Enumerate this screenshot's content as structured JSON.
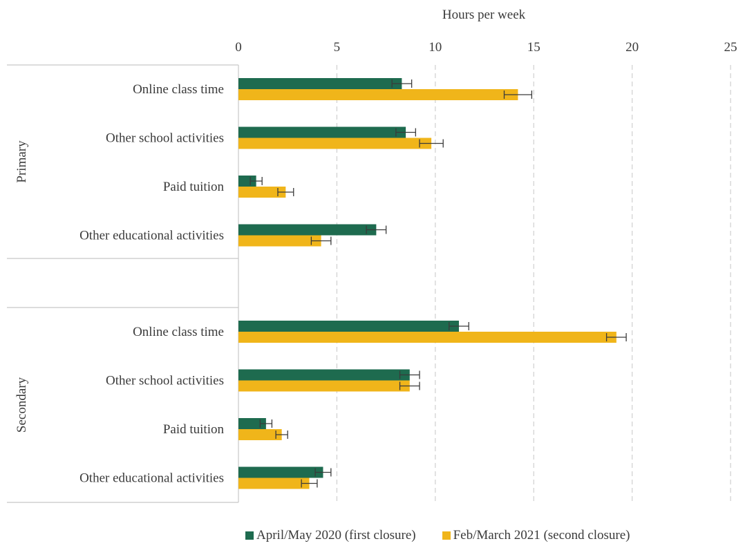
{
  "chart_data": {
    "type": "bar",
    "orientation": "horizontal",
    "xlabel": "Hours per week",
    "xlim": [
      0,
      25
    ],
    "xticks": [
      0,
      5,
      10,
      15,
      20,
      25
    ],
    "grid": true,
    "legend_position": "bottom",
    "colors": {
      "first": "#1e6b4f",
      "second": "#f0b51a"
    },
    "groups": [
      {
        "name": "Primary",
        "categories": [
          "Online class time",
          "Other school activities",
          "Paid tuition",
          "Other educational activities"
        ],
        "series": [
          {
            "name": "April/May 2020 (first closure)",
            "values": [
              8.3,
              8.5,
              0.9,
              7.0
            ],
            "error": [
              0.5,
              0.5,
              0.3,
              0.5
            ]
          },
          {
            "name": "Feb/March 2021 (second closure)",
            "values": [
              14.2,
              9.8,
              2.4,
              4.2
            ],
            "error": [
              0.7,
              0.6,
              0.4,
              0.5
            ]
          }
        ]
      },
      {
        "name": "Secondary",
        "categories": [
          "Online class time",
          "Other school activities",
          "Paid tuition",
          "Other educational activities"
        ],
        "series": [
          {
            "name": "April/May 2020 (first closure)",
            "values": [
              11.2,
              8.7,
              1.4,
              4.3
            ],
            "error": [
              0.5,
              0.5,
              0.3,
              0.4
            ]
          },
          {
            "name": "Feb/March 2021 (second closure)",
            "values": [
              19.2,
              8.7,
              2.2,
              3.6
            ],
            "error": [
              0.5,
              0.5,
              0.3,
              0.4
            ]
          }
        ]
      }
    ]
  }
}
